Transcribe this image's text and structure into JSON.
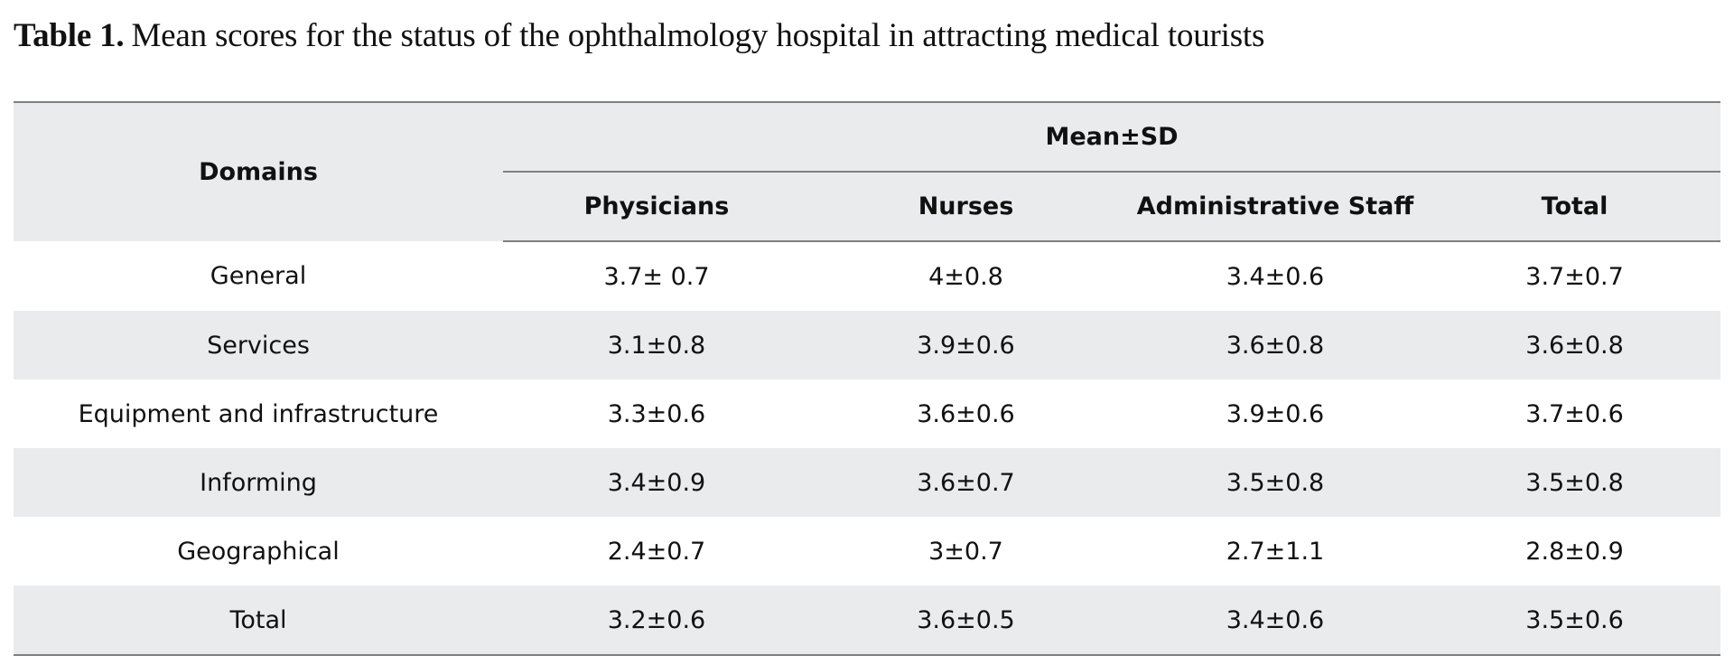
{
  "caption": {
    "label": "Table 1.",
    "text": "Mean scores for the status of the ophthalmology hospital in attracting medical tourists"
  },
  "table": {
    "header_domains": "Domains",
    "header_group": "Mean±SD",
    "columns": [
      "Physicians",
      "Nurses",
      "Administrative Staff",
      "Total"
    ],
    "rows": [
      {
        "domain": "General",
        "values": [
          "3.7± 0.7",
          "4±0.8",
          "3.4±0.6",
          "3.7±0.7"
        ]
      },
      {
        "domain": "Services",
        "values": [
          "3.1±0.8",
          "3.9±0.6",
          "3.6±0.8",
          "3.6±0.8"
        ]
      },
      {
        "domain": "Equipment and infrastructure",
        "values": [
          "3.3±0.6",
          "3.6±0.6",
          "3.9±0.6",
          "3.7±0.6"
        ]
      },
      {
        "domain": "Informing",
        "values": [
          "3.4±0.9",
          "3.6±0.7",
          "3.5±0.8",
          "3.5±0.8"
        ]
      },
      {
        "domain": "Geographical",
        "values": [
          "2.4±0.7",
          "3±0.7",
          "2.7±1.1",
          "2.8±0.9"
        ]
      },
      {
        "domain": "Total",
        "values": [
          "3.2±0.6",
          "3.6±0.5",
          "3.4±0.6",
          "3.5±0.6"
        ]
      }
    ]
  }
}
